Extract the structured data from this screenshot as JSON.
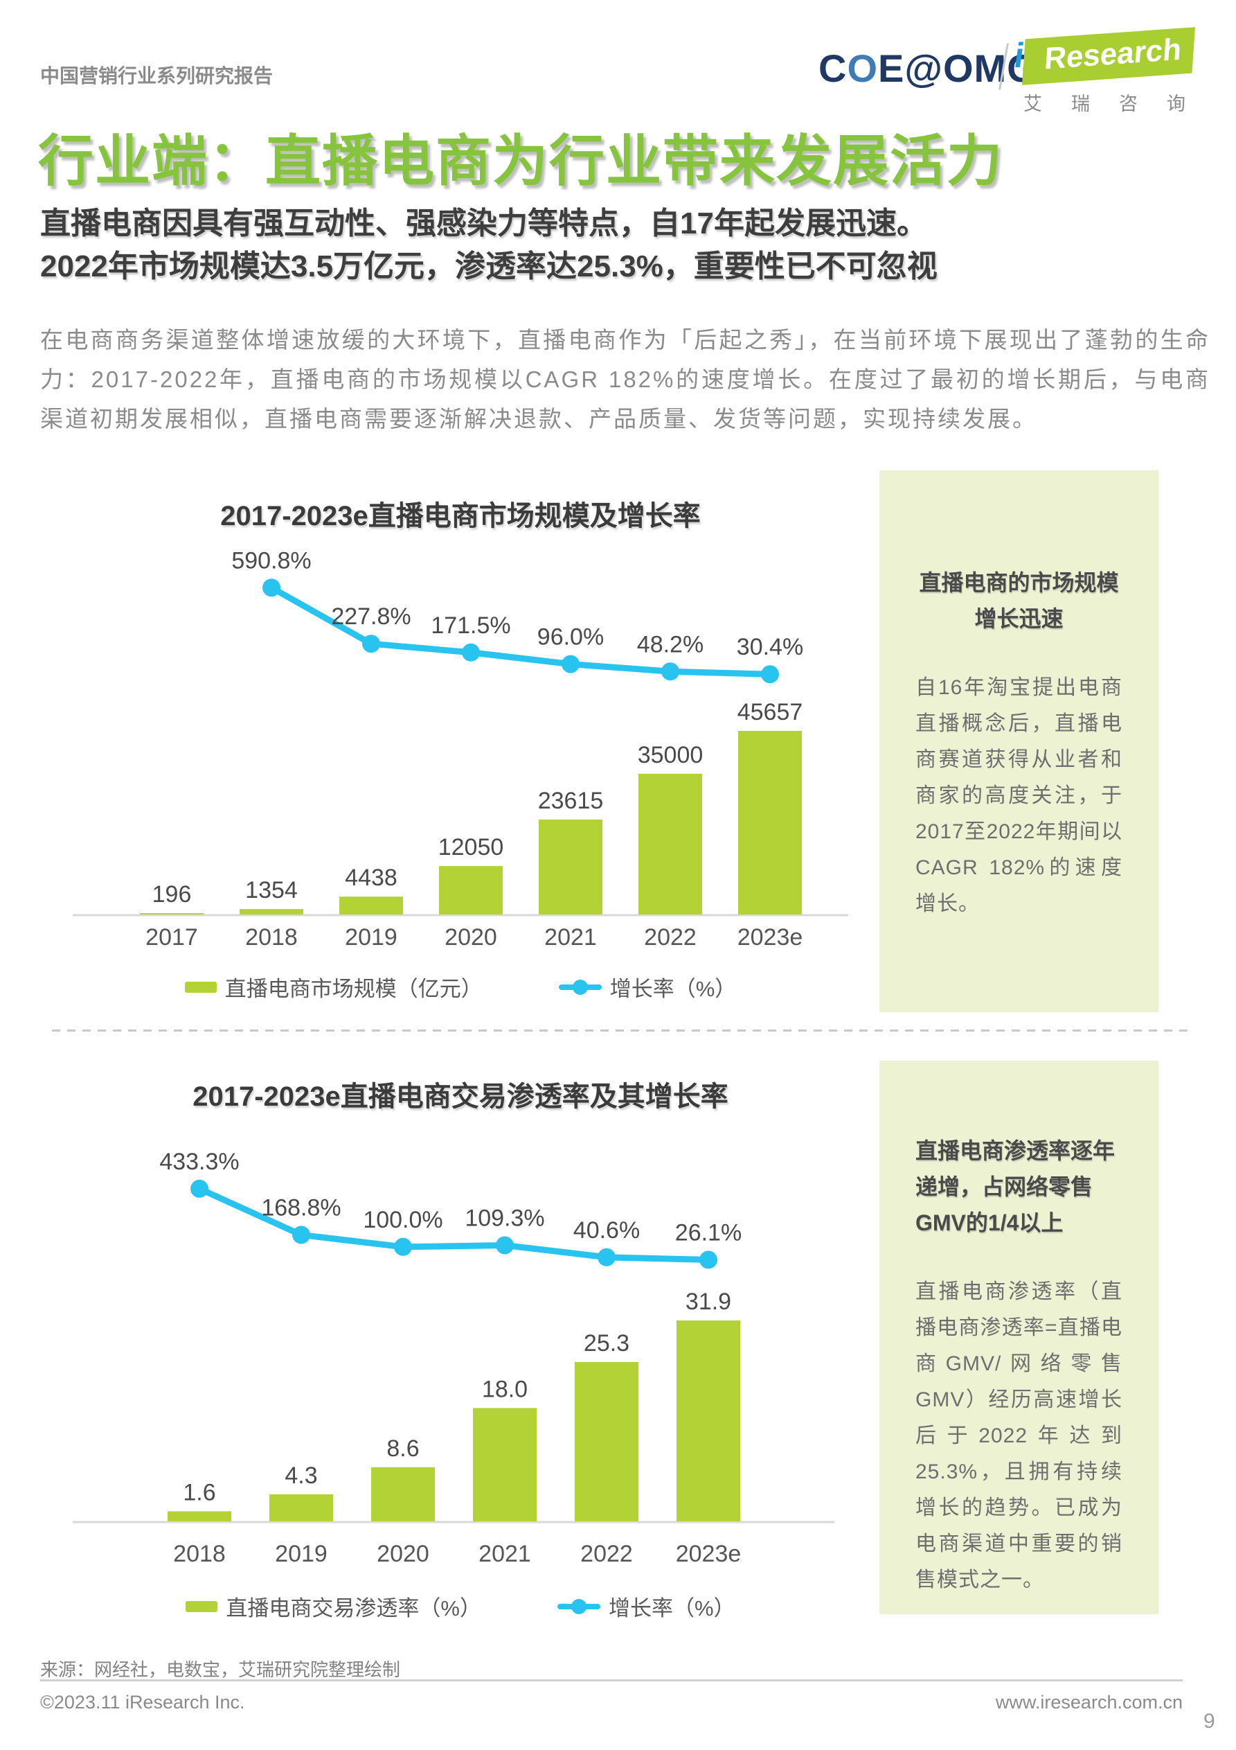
{
  "header": {
    "series_label": "中国营销行业系列研究报告",
    "page_title": "行业端：直播电商为行业带来发展活力",
    "logo_coe_c": "C",
    "logo_coe_o": "O",
    "logo_coe_rest": "E@OMG",
    "logo_iresearch_i": "i",
    "logo_iresearch_text": "Research",
    "logo_iresearch_cn": "艾瑞咨询"
  },
  "intro": {
    "headline_line1": "直播电商因具有强互动性、强感染力等特点，自17年起发展迅速。",
    "headline_line2": "2022年市场规模达3.5万亿元，渗透率达25.3%，重要性已不可忽视",
    "paragraph": "在电商商务渠道整体增速放缓的大环境下，直播电商作为「后起之秀」，在当前环境下展现出了蓬勃的生命力：2017-2022年，直播电商的市场规模以CAGR 182%的速度增长。在度过了最初的增长期后，与电商渠道初期发展相似，直播电商需要逐渐解决退款、产品质量、发货等问题，实现持续发展。"
  },
  "chart_data": [
    {
      "type": "bar",
      "subtype": "bar+line-combo",
      "title": "2017-2023e直播电商市场规模及增长率",
      "categories": [
        "2017",
        "2018",
        "2019",
        "2020",
        "2021",
        "2022",
        "2023e"
      ],
      "series": [
        {
          "name": "直播电商市场规模（亿元）",
          "type": "bar",
          "color": "#B2D235",
          "values": [
            196,
            1354,
            4438,
            12050,
            23615,
            35000,
            45657
          ],
          "labels": [
            "196",
            "1354",
            "4438",
            "12050",
            "23615",
            "35000",
            "45657"
          ]
        },
        {
          "name": "增长率（%）",
          "type": "line",
          "color": "#29C3F0",
          "values": [
            null,
            590.8,
            227.8,
            171.5,
            96.0,
            48.2,
            30.4
          ],
          "labels": [
            "",
            "590.8%",
            "227.8%",
            "171.5%",
            "96.0%",
            "48.2%",
            "30.4%"
          ]
        }
      ],
      "ylabel": "",
      "xlabel": "",
      "grid": false,
      "legend_position": "bottom",
      "ylim_bar": [
        0,
        48000
      ],
      "ylim_line_pct": [
        0,
        660
      ]
    },
    {
      "type": "bar",
      "subtype": "bar+line-combo",
      "title": "2017-2023e直播电商交易渗透率及其增长率",
      "categories": [
        "2018",
        "2019",
        "2020",
        "2021",
        "2022",
        "2023e"
      ],
      "series": [
        {
          "name": "直播电商交易渗透率（%）",
          "type": "bar",
          "color": "#B2D235",
          "values": [
            1.6,
            4.3,
            8.6,
            18.0,
            25.3,
            31.9
          ],
          "labels": [
            "1.6",
            "4.3",
            "8.6",
            "18.0",
            "25.3",
            "31.9"
          ]
        },
        {
          "name": "增长率（%）",
          "type": "line",
          "color": "#29C3F0",
          "values": [
            433.3,
            168.8,
            100.0,
            109.3,
            40.6,
            26.1
          ],
          "labels": [
            "433.3%",
            "168.8%",
            "100.0%",
            "109.3%",
            "40.6%",
            "26.1%"
          ]
        }
      ],
      "ylabel": "",
      "xlabel": "",
      "grid": false,
      "legend_position": "bottom",
      "ylim_bar": [
        0,
        34
      ],
      "ylim_line_pct": [
        0,
        735
      ]
    }
  ],
  "sidebar": {
    "box1": {
      "title": "直播电商的市场规模增长迅速",
      "body": "自16年淘宝提出电商直播概念后，直播电商赛道获得从业者和商家的高度关注，于2017至2022年期间以CAGR 182%的速度增长。"
    },
    "box2": {
      "title": "直播电商渗透率逐年递增，占网络零售GMV的1/4以上",
      "body": "直播电商渗透率（直播电商渗透率=直播电商GMV/网络零售GMV）经历高速增长后于2022年达到25.3%，且拥有持续增长的趋势。已成为电商渠道中重要的销售模式之一。"
    }
  },
  "colors": {
    "title_green": "#86C43D",
    "bar_green": "#B2D235",
    "line_cyan": "#29C3F0",
    "logo_navy": "#1F3864",
    "logo_green": "#A8CE32",
    "sidebar_bg": "#EDF2D2"
  },
  "footer": {
    "source": "来源：网经社，电数宝，艾瑞研究院整理绘制",
    "copyright": "©2023.11 iResearch Inc.",
    "website": "www.iresearch.com.cn",
    "page_number": "9"
  }
}
